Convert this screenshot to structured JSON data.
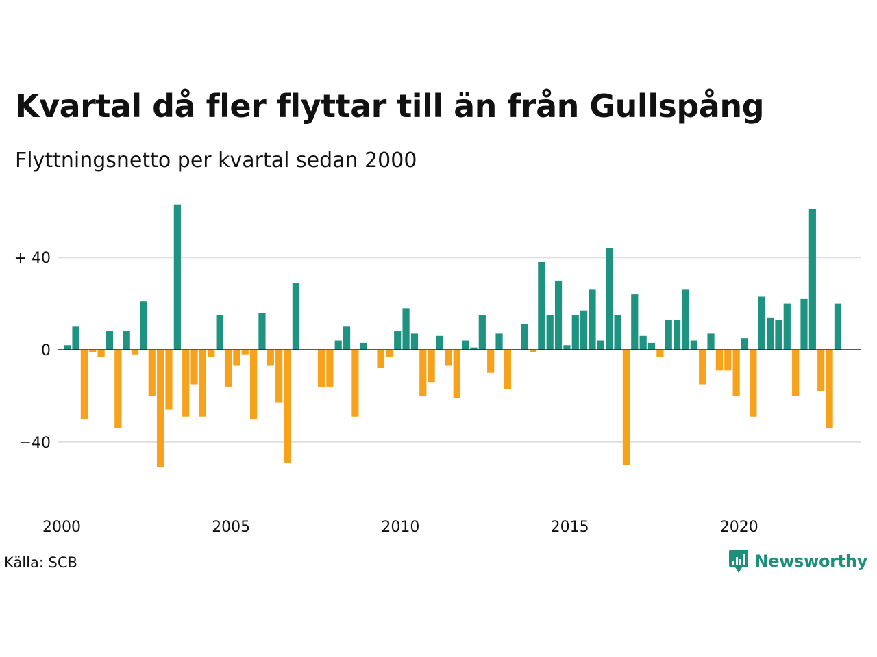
{
  "title": "Kvartal då fler flyttar till än från Gullspång",
  "subtitle": "Flyttningsnetto per kvartal sedan 2000",
  "source": "Källa: SCB",
  "brand": "Newsworthy",
  "colors": {
    "positive": "#1f9382",
    "negative": "#f6a21c",
    "grid": "#dddddd",
    "zero": "#222222",
    "brand": "#1f8f7c"
  },
  "chart_data": {
    "type": "bar",
    "x_start": "2000 Q1",
    "x_ticks": [
      {
        "label": "2000",
        "index": 0
      },
      {
        "label": "2005",
        "index": 20
      },
      {
        "label": "2010",
        "index": 40
      },
      {
        "label": "2015",
        "index": 60
      },
      {
        "label": "2020",
        "index": 80
      }
    ],
    "y_ticks": [
      {
        "label": "+ 40",
        "value": 40
      },
      {
        "label": "0",
        "value": 0
      },
      {
        "label": "−40",
        "value": -40
      }
    ],
    "ylim": [
      -60,
      64
    ],
    "grid": true,
    "values": [
      2,
      10,
      -30,
      -1,
      -3,
      8,
      -34,
      8,
      -2,
      21,
      -20,
      -51,
      -26,
      63,
      -29,
      -15,
      -29,
      -3,
      15,
      -16,
      -7,
      -2,
      -30,
      16,
      -7,
      -23,
      -49,
      29,
      0,
      0,
      -16,
      -16,
      4,
      10,
      -29,
      3,
      0,
      -8,
      -3,
      8,
      18,
      7,
      -20,
      -14,
      6,
      -7,
      -21,
      4,
      1,
      15,
      -10,
      7,
      -17,
      0,
      11,
      -1,
      38,
      15,
      30,
      2,
      15,
      17,
      26,
      4,
      44,
      15,
      -50,
      24,
      6,
      3,
      -3,
      13,
      13,
      26,
      4,
      -15,
      7,
      -9,
      -9,
      -20,
      5,
      -29,
      23,
      14,
      13,
      20,
      -20,
      22,
      61,
      -18,
      -34,
      20
    ]
  }
}
